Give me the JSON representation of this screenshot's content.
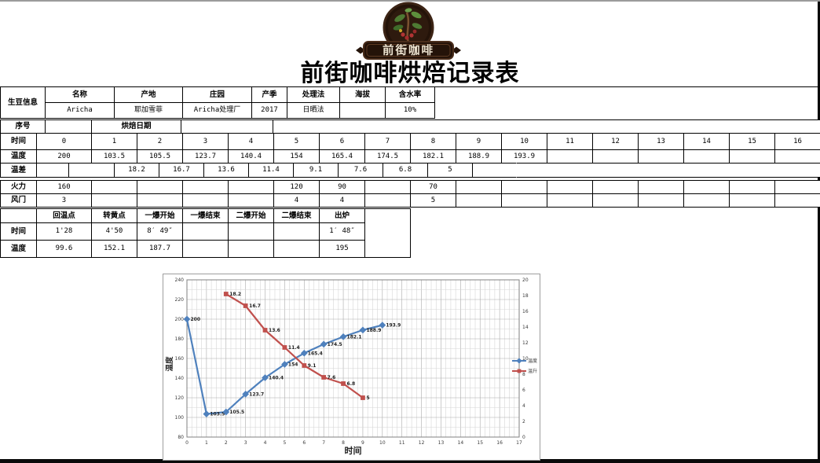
{
  "page": {
    "title": "前街咖啡烘焙记录表"
  },
  "logo": {
    "text": "前街咖啡"
  },
  "bean_info": {
    "label": "生豆信息",
    "headers": [
      "名称",
      "产地",
      "庄园",
      "产季",
      "处理法",
      "海拔",
      "含水率"
    ],
    "values": [
      "Aricha",
      "耶加雪菲",
      "Aricha处理厂",
      "2017",
      "日晒法",
      "",
      "10%"
    ]
  },
  "roast_grid": {
    "serial_label": "序号",
    "roast_date_label": "烘焙日期",
    "time_label": "时间",
    "temp_label": "温度",
    "diff_label": "温差",
    "heat_label": "火力",
    "damper_label": "风门",
    "times": [
      "0",
      "1",
      "2",
      "3",
      "4",
      "5",
      "6",
      "7",
      "8",
      "9",
      "10",
      "11",
      "12",
      "13",
      "14",
      "15",
      "16"
    ],
    "temps": [
      "200",
      "103.5",
      "105.5",
      "123.7",
      "140.4",
      "154",
      "165.4",
      "174.5",
      "182.1",
      "188.9",
      "193.9",
      "",
      "",
      "",
      "",
      "",
      ""
    ],
    "diffs": [
      "18.2",
      "16.7",
      "13.6",
      "11.4",
      "9.1",
      "7.6",
      "6.8",
      "5"
    ],
    "heat": [
      "160",
      "",
      "",
      "",
      "",
      "120",
      "90",
      "",
      "70",
      "",
      "",
      "",
      "",
      "",
      "",
      "",
      ""
    ],
    "damper": [
      "3",
      "",
      "",
      "",
      "",
      "4",
      "4",
      "",
      "5",
      "",
      "",
      "",
      "",
      "",
      "",
      "",
      ""
    ]
  },
  "milestones": {
    "headers": [
      "回温点",
      "转黄点",
      "一爆开始",
      "一爆结束",
      "二爆开始",
      "二爆结束",
      "出炉"
    ],
    "time_label": "时间",
    "temp_label": "温度",
    "times": [
      "1'28",
      "4'50",
      "8′ 49″",
      "",
      "",
      "",
      "1′ 48″"
    ],
    "temps": [
      "99.6",
      "152.1",
      "187.7",
      "",
      "",
      "",
      "195"
    ]
  },
  "chart_data": {
    "type": "line",
    "xlabel": "时间",
    "ylabel_left": "温度",
    "x_ticks": [
      "0",
      "1",
      "2",
      "3",
      "4",
      "5",
      "6",
      "7",
      "8",
      "9",
      "10",
      "11",
      "12",
      "13",
      "14",
      "15",
      "16",
      "17"
    ],
    "x_range": [
      0,
      17
    ],
    "left_axis": {
      "min": 80,
      "max": 240,
      "step": 20,
      "ticks": [
        "240",
        "220",
        "200",
        "180",
        "160",
        "140",
        "120",
        "100",
        "80"
      ]
    },
    "right_axis": {
      "min": 0,
      "max": 20,
      "step": 2,
      "ticks": [
        "20",
        "18",
        "16",
        "14",
        "12",
        "10",
        "8",
        "6",
        "4",
        "2",
        "0"
      ]
    },
    "grid": "on",
    "legend_position": "right",
    "series": [
      {
        "name": "温度",
        "axis": "left",
        "color": "#4F81BD",
        "marker": "diamond",
        "x": [
          0,
          1,
          2,
          3,
          4,
          5,
          6,
          7,
          8,
          9,
          10
        ],
        "values": [
          200,
          103.5,
          105.5,
          123.7,
          140.4,
          154,
          165.4,
          174.5,
          182.1,
          188.9,
          193.9
        ],
        "labels": [
          "200",
          "103.5",
          "105.5",
          "123.7",
          "140.4",
          "154",
          "165.4",
          "174.5",
          "182.1",
          "188.9",
          "193.9"
        ]
      },
      {
        "name": "温升",
        "axis": "right",
        "color": "#C0504D",
        "marker": "square",
        "x": [
          2,
          3,
          4,
          5,
          6,
          7,
          8,
          9
        ],
        "values": [
          18.2,
          16.7,
          13.6,
          11.4,
          9.1,
          7.6,
          6.8,
          5
        ],
        "labels": [
          "18.2",
          "16.7",
          "13.6",
          "11.4",
          "9.1",
          "7.6",
          "6.8",
          "5"
        ]
      }
    ]
  },
  "colors": {
    "series_temp": "#4F81BD",
    "series_rise": "#C0504D",
    "grid_major": "#ababab",
    "grid_minor": "#d6d6d6",
    "chart_border": "#808080",
    "logo_dark": "#241309",
    "logo_cream": "#ece2cf"
  }
}
